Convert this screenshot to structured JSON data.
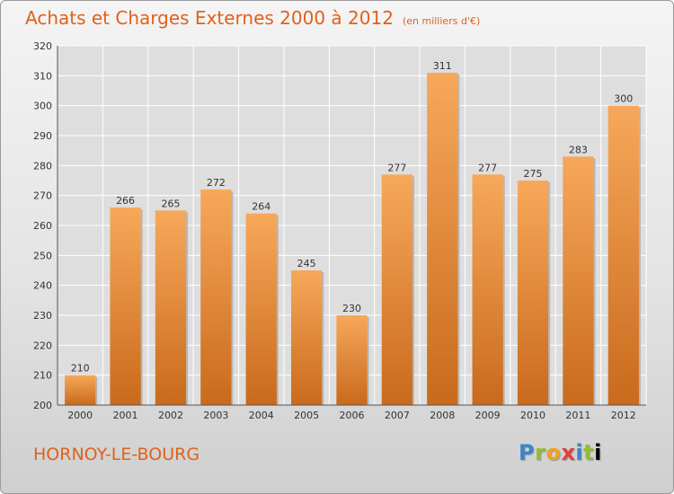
{
  "chart_data": {
    "type": "bar",
    "title": "Achats et Charges Externes 2000 à 2012",
    "subtitle": "(en milliers d'€)",
    "xlabel": "",
    "ylabel": "",
    "categories": [
      "2000",
      "2001",
      "2002",
      "2003",
      "2004",
      "2005",
      "2006",
      "2007",
      "2008",
      "2009",
      "2010",
      "2011",
      "2012"
    ],
    "values": [
      210,
      266,
      265,
      272,
      264,
      245,
      230,
      277,
      311,
      277,
      275,
      283,
      300
    ],
    "ylim": [
      200,
      320
    ],
    "yticks": [
      200,
      210,
      220,
      230,
      240,
      250,
      260,
      270,
      280,
      290,
      300,
      310,
      320
    ],
    "grid": true,
    "bar_color_top": "#f7a85a",
    "bar_color_bottom": "#c96a1c"
  },
  "footer": {
    "location": "HORNOY-LE-BOURG",
    "logo_letters": [
      "P",
      "r",
      "o",
      "x",
      "i",
      "t",
      "i"
    ]
  },
  "colors": {
    "title": "#e0611a",
    "grid": "#ffffff",
    "plot_background": "#dedede"
  }
}
